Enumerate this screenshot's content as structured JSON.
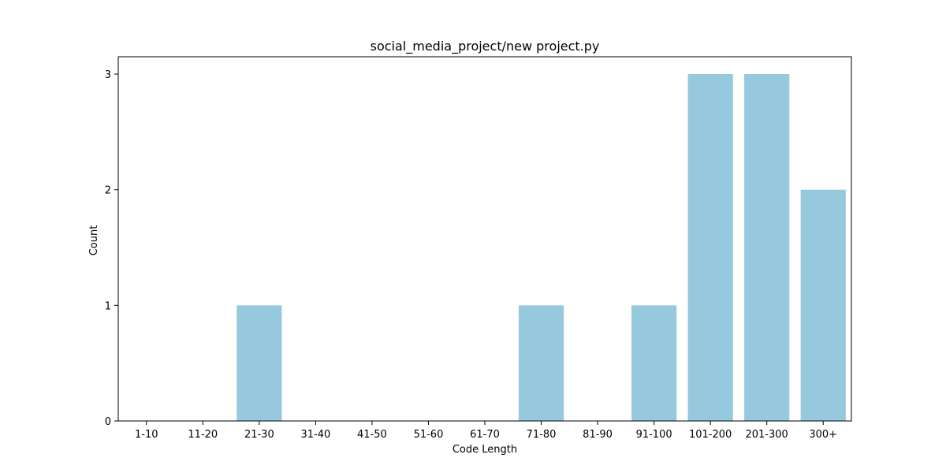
{
  "chart_data": {
    "type": "bar",
    "title": "social_media_project/new project.py",
    "xlabel": "Code Length",
    "ylabel": "Count",
    "categories": [
      "1-10",
      "11-20",
      "21-30",
      "31-40",
      "41-50",
      "51-60",
      "61-70",
      "71-80",
      "81-90",
      "91-100",
      "101-200",
      "201-300",
      "300+"
    ],
    "values": [
      0,
      0,
      1,
      0,
      0,
      0,
      0,
      1,
      0,
      1,
      3,
      3,
      2
    ],
    "ylim": [
      0,
      3.15
    ],
    "yticks": [
      0,
      1,
      2,
      3
    ],
    "grid": false,
    "bar_color": "#96c9de"
  }
}
